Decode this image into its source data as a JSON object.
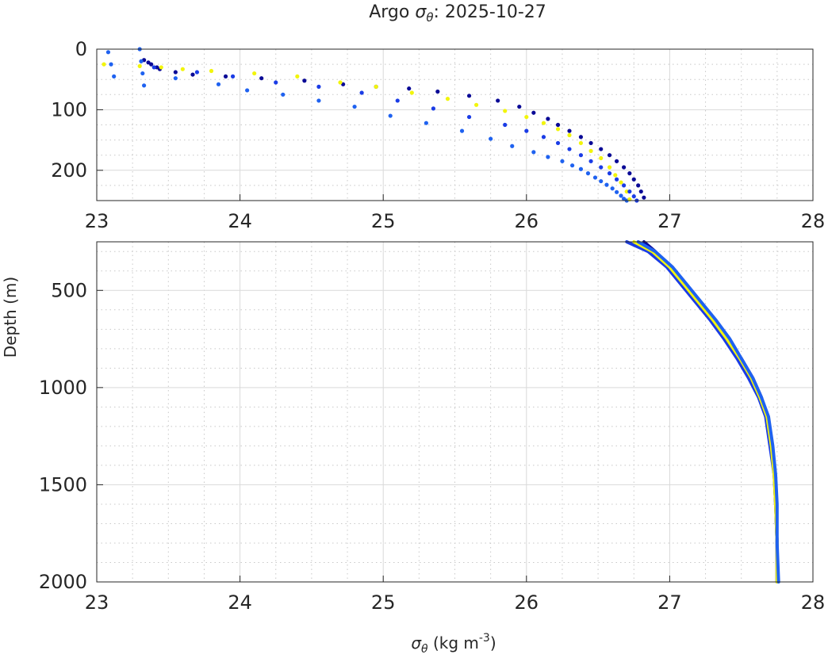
{
  "title": {
    "prefix": "Argo ",
    "symbol": "σ",
    "subscript": "θ",
    "suffix": ": 2025-10-27"
  },
  "xlabel": {
    "symbol": "σ",
    "subscript": "θ",
    "text": " (kg m",
    "superscript": "-3",
    "close": ")"
  },
  "ylabel": "Depth (m)",
  "colors": {
    "navy": "#0a0a96",
    "blue": "#1a3ce6",
    "midblue": "#1f62f0",
    "yellow": "#f2f50c"
  },
  "chart_data": [
    {
      "type": "scatter",
      "panel": "upper",
      "xlim": [
        23,
        28
      ],
      "ylim": [
        0,
        250
      ],
      "y_reversed": true,
      "grid": true,
      "x_ticks": [
        "23",
        "24",
        "25",
        "26",
        "27",
        "28"
      ],
      "y_ticks": [
        "0",
        "100",
        "200"
      ],
      "x_tick_values": [
        23,
        24,
        25,
        26,
        27,
        28
      ],
      "y_tick_values": [
        0,
        100,
        200
      ],
      "series": [
        {
          "color": "#0a0a96",
          "x": [
            23.33,
            23.36,
            23.38,
            23.42,
            23.44,
            23.55,
            23.67,
            23.9,
            24.15,
            24.45,
            24.72,
            24.95,
            25.18,
            25.38,
            25.6,
            25.8,
            25.95,
            26.05,
            26.15,
            26.22,
            26.3,
            26.38,
            26.45,
            26.52,
            26.58,
            26.63,
            26.68,
            26.72,
            26.75,
            26.78,
            26.8,
            26.82
          ],
          "y": [
            18,
            22,
            25,
            30,
            33,
            38,
            42,
            45,
            48,
            52,
            58,
            62,
            65,
            70,
            77,
            85,
            95,
            105,
            115,
            125,
            135,
            145,
            155,
            165,
            175,
            185,
            195,
            205,
            215,
            225,
            235,
            245
          ]
        },
        {
          "color": "#1f62f0",
          "x": [
            23.08,
            23.1,
            23.12,
            23.3,
            23.31,
            23.32,
            23.33,
            23.55,
            23.85,
            24.05,
            24.3,
            24.55,
            24.8,
            25.05,
            25.3,
            25.55,
            25.75,
            25.9,
            26.05,
            26.15,
            26.25,
            26.32,
            26.38,
            26.43,
            26.48,
            26.52,
            26.56,
            26.6,
            26.63,
            26.66,
            26.68,
            26.7
          ],
          "y": [
            5,
            25,
            45,
            0,
            20,
            40,
            60,
            48,
            58,
            68,
            75,
            85,
            95,
            110,
            122,
            135,
            148,
            160,
            170,
            178,
            185,
            192,
            198,
            205,
            212,
            218,
            224,
            230,
            236,
            242,
            247,
            250
          ]
        },
        {
          "color": "#f2f50c",
          "x": [
            23.05,
            23.3,
            23.45,
            23.6,
            23.8,
            24.1,
            24.4,
            24.7,
            24.95,
            25.2,
            25.45,
            25.65,
            25.85,
            26.0,
            26.12,
            26.22,
            26.3,
            26.38,
            26.45,
            26.52,
            26.58,
            26.62,
            26.66,
            26.7,
            26.72
          ],
          "y": [
            25,
            28,
            30,
            33,
            36,
            40,
            45,
            55,
            62,
            72,
            82,
            92,
            102,
            112,
            122,
            132,
            142,
            155,
            168,
            180,
            195,
            208,
            220,
            235,
            248
          ]
        },
        {
          "color": "#1a3ce6",
          "x": [
            23.4,
            23.7,
            23.95,
            24.25,
            24.55,
            24.85,
            25.1,
            25.35,
            25.6,
            25.85,
            26.0,
            26.12,
            26.22,
            26.3,
            26.38,
            26.45,
            26.52,
            26.58,
            26.63,
            26.68,
            26.72,
            26.75,
            26.77
          ],
          "y": [
            30,
            38,
            45,
            55,
            62,
            72,
            85,
            98,
            112,
            125,
            135,
            145,
            155,
            165,
            175,
            185,
            195,
            205,
            215,
            225,
            235,
            243,
            250
          ]
        }
      ]
    },
    {
      "type": "line",
      "panel": "lower",
      "xlim": [
        23,
        28
      ],
      "ylim": [
        250,
        2000
      ],
      "y_reversed": true,
      "grid": true,
      "x_ticks": [
        "23",
        "24",
        "25",
        "26",
        "27",
        "28"
      ],
      "y_ticks": [
        "500",
        "1000",
        "1500",
        "2000"
      ],
      "x_tick_values": [
        23,
        24,
        25,
        26,
        27,
        28
      ],
      "y_tick_values": [
        500,
        1000,
        1500,
        2000
      ],
      "series": [
        {
          "color": "#0a0a96",
          "x": [
            26.82,
            26.9,
            27.0,
            27.1,
            27.2,
            27.3,
            27.4,
            27.5,
            27.58,
            27.64,
            27.68,
            27.71,
            27.73,
            27.74,
            27.75,
            27.75
          ],
          "y": [
            250,
            300,
            380,
            470,
            560,
            650,
            750,
            850,
            950,
            1050,
            1150,
            1300,
            1450,
            1600,
            1800,
            2000
          ]
        },
        {
          "color": "#1a3ce6",
          "x": [
            26.7,
            26.85,
            26.98,
            27.08,
            27.18,
            27.28,
            27.38,
            27.47,
            27.55,
            27.62,
            27.67,
            27.7,
            27.73,
            27.74,
            27.75,
            27.75
          ],
          "y": [
            250,
            300,
            380,
            470,
            560,
            650,
            750,
            850,
            950,
            1050,
            1150,
            1300,
            1450,
            1600,
            1800,
            2000
          ]
        },
        {
          "color": "#f2f50c",
          "x": [
            26.75,
            26.88,
            27.0,
            27.1,
            27.2,
            27.3,
            27.4,
            27.49,
            27.57,
            27.63,
            27.68,
            27.71,
            27.73,
            27.74,
            27.75,
            27.75
          ],
          "y": [
            250,
            300,
            380,
            470,
            560,
            650,
            750,
            850,
            950,
            1050,
            1150,
            1300,
            1450,
            1600,
            1800,
            2000
          ]
        },
        {
          "color": "#1f62f0",
          "x": [
            26.78,
            26.9,
            27.02,
            27.12,
            27.22,
            27.32,
            27.42,
            27.5,
            27.58,
            27.64,
            27.69,
            27.72,
            27.74,
            27.75,
            27.75,
            27.76
          ],
          "y": [
            250,
            300,
            380,
            470,
            560,
            650,
            750,
            850,
            950,
            1050,
            1150,
            1300,
            1450,
            1600,
            1800,
            2000
          ]
        }
      ]
    }
  ]
}
